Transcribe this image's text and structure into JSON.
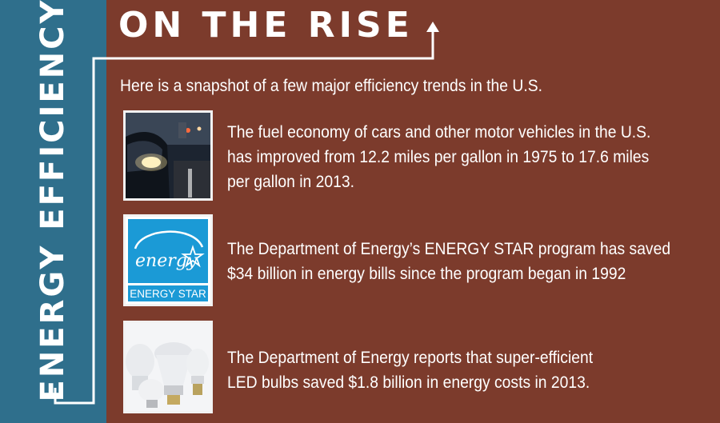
{
  "sidebar": {
    "title": "ENERGY EFFICIENCY"
  },
  "header": {
    "headline": "ON THE RISE",
    "intro": "Here is a snapshot of a few major efficiency trends in the U.S."
  },
  "facts": [
    {
      "image": "car-headlights-traffic",
      "lines": [
        "The fuel economy of cars and other motor vehicles in the U.S.",
        "has improved from 12.2 miles per gallon in 1975 to 17.6 miles",
        "per gallon in 2013."
      ]
    },
    {
      "image": "energy-star-logo",
      "logo_text": "ENERGY STAR",
      "lines": [
        "The Department of Energy’s ENERGY STAR program has saved",
        "$34 billion in energy bills since the program began in 1992"
      ]
    },
    {
      "image": "led-bulbs",
      "lines": [
        "The Department of Energy reports that super-efficient",
        "LED bulbs saved $1.8 billion in energy costs in 2013."
      ]
    }
  ],
  "colors": {
    "background": "#7c3b2c",
    "side_band": "#2f6f8c",
    "text": "#ffffff",
    "energy_star_blue": "#1b9ad6"
  }
}
